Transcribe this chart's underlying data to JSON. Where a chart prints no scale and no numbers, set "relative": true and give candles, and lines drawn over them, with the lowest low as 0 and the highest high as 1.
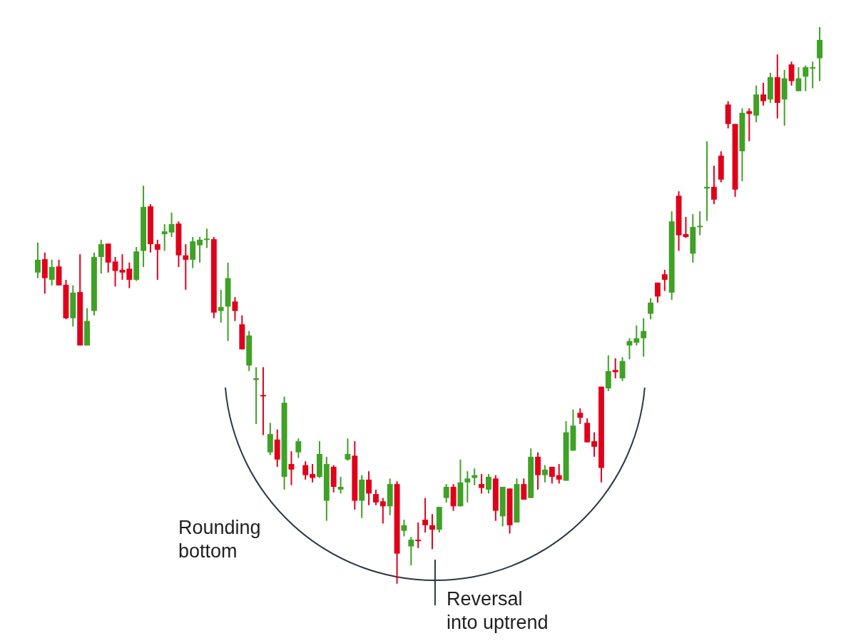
{
  "chart_data": {
    "type": "candlestick",
    "relative": true,
    "categories": [
      null,
      null,
      null,
      null,
      null,
      null,
      null,
      null,
      null,
      null,
      null,
      null,
      null,
      null,
      null,
      null,
      null,
      null,
      null,
      null,
      null,
      null,
      null,
      null,
      null,
      null,
      null,
      null,
      null,
      null,
      null,
      null,
      null,
      null,
      null,
      null,
      null,
      null,
      null,
      null,
      null,
      null,
      null,
      null,
      null,
      null,
      null,
      null,
      null,
      null,
      null,
      null,
      null,
      null,
      null,
      null,
      null,
      null,
      null,
      null,
      null,
      null,
      null,
      null,
      null,
      null,
      null,
      null,
      null,
      null,
      null,
      null,
      null,
      null,
      null,
      null,
      null,
      null,
      null,
      null,
      null,
      null,
      null,
      null,
      null,
      null,
      null,
      null,
      null,
      null,
      null,
      null,
      null,
      null,
      null,
      null,
      null,
      null,
      null,
      null,
      null,
      null,
      null,
      null,
      null,
      null,
      null,
      null,
      null,
      null,
      null,
      null
    ],
    "ohlc": [
      [
        0.559,
        0.613,
        0.549,
        0.582
      ],
      [
        0.583,
        0.595,
        0.521,
        0.549
      ],
      [
        0.546,
        0.582,
        0.536,
        0.569
      ],
      [
        0.57,
        0.582,
        0.536,
        0.536
      ],
      [
        0.537,
        0.546,
        0.475,
        0.477
      ],
      [
        0.477,
        0.536,
        0.462,
        0.523
      ],
      [
        0.524,
        0.592,
        0.428,
        0.428
      ],
      [
        0.428,
        0.495,
        0.428,
        0.472
      ],
      [
        0.49,
        0.595,
        0.482,
        0.587
      ],
      [
        0.587,
        0.618,
        0.557,
        0.61
      ],
      [
        0.611,
        0.611,
        0.559,
        0.577
      ],
      [
        0.579,
        0.587,
        0.534,
        0.562
      ],
      [
        0.564,
        0.592,
        0.546,
        0.559
      ],
      [
        0.566,
        0.577,
        0.531,
        0.546
      ],
      [
        0.546,
        0.605,
        0.544,
        0.597
      ],
      [
        0.598,
        0.715,
        0.569,
        0.677
      ],
      [
        0.678,
        0.682,
        0.595,
        0.61
      ],
      [
        0.61,
        0.618,
        0.546,
        0.6
      ],
      [
        0.628,
        0.646,
        0.598,
        0.633
      ],
      [
        0.631,
        0.667,
        0.623,
        0.646
      ],
      [
        0.647,
        0.651,
        0.569,
        0.59
      ],
      [
        0.59,
        0.61,
        0.528,
        0.582
      ],
      [
        0.582,
        0.623,
        0.567,
        0.615
      ],
      [
        0.608,
        0.623,
        0.577,
        0.618
      ],
      [
        0.618,
        0.638,
        0.603,
        0.62
      ],
      [
        0.619,
        0.623,
        0.477,
        0.487
      ],
      [
        0.49,
        0.528,
        0.469,
        0.497
      ],
      [
        0.498,
        0.577,
        0.436,
        0.549
      ],
      [
        0.507,
        0.515,
        0.472,
        0.49
      ],
      [
        0.466,
        0.482,
        0.421,
        0.421
      ],
      [
        0.392,
        0.454,
        0.382,
        0.446
      ],
      [
        0.366,
        0.389,
        0.287,
        0.369
      ],
      [
        0.339,
        0.389,
        0.267,
        0.337
      ],
      [
        0.236,
        0.289,
        0.231,
        0.269
      ],
      [
        0.259,
        0.277,
        0.21,
        0.223
      ],
      [
        0.192,
        0.336,
        0.169,
        0.325
      ],
      [
        0.215,
        0.238,
        0.177,
        0.205
      ],
      [
        0.236,
        0.261,
        0.226,
        0.256
      ],
      [
        0.213,
        0.22,
        0.187,
        0.195
      ],
      [
        0.197,
        0.215,
        0.182,
        0.19
      ],
      [
        0.192,
        0.256,
        0.19,
        0.233
      ],
      [
        0.149,
        0.228,
        0.113,
        0.215
      ],
      [
        0.21,
        0.213,
        0.164,
        0.174
      ],
      [
        0.169,
        0.192,
        0.162,
        0.174
      ],
      [
        0.223,
        0.261,
        0.221,
        0.233
      ],
      [
        0.23,
        0.256,
        0.133,
        0.149
      ],
      [
        0.149,
        0.195,
        0.118,
        0.187
      ],
      [
        0.187,
        0.202,
        0.141,
        0.162
      ],
      [
        0.161,
        0.169,
        0.141,
        0.146
      ],
      [
        0.148,
        0.154,
        0.108,
        0.139
      ],
      [
        0.139,
        0.189,
        0.123,
        0.179
      ],
      [
        0.179,
        0.184,
        0,
        0.054
      ],
      [
        0.095,
        0.115,
        0.085,
        0.105
      ],
      [
        0.067,
        0.084,
        0.033,
        0.079
      ],
      [
        0.079,
        0.11,
        0.064,
        0.077
      ],
      [
        0.115,
        0.154,
        0.092,
        0.105
      ],
      [
        0.105,
        0.125,
        0.062,
        0.097
      ],
      [
        0.097,
        0.138,
        0.092,
        0.138
      ],
      [
        0.154,
        0.179,
        0.146,
        0.174
      ],
      [
        0.174,
        0.179,
        0.131,
        0.139
      ],
      [
        0.139,
        0.223,
        0.139,
        0.182
      ],
      [
        0.182,
        0.202,
        0.146,
        0.189
      ],
      [
        0.19,
        0.207,
        0.177,
        0.195
      ],
      [
        0.179,
        0.197,
        0.162,
        0.172
      ],
      [
        0.169,
        0.197,
        0.162,
        0.192
      ],
      [
        0.189,
        0.195,
        0.113,
        0.131
      ],
      [
        0.121,
        0.174,
        0.103,
        0.174
      ],
      [
        0.171,
        0.171,
        0.09,
        0.105
      ],
      [
        0.11,
        0.189,
        0.11,
        0.179
      ],
      [
        0.179,
        0.189,
        0.151,
        0.151
      ],
      [
        0.154,
        0.243,
        0.154,
        0.228
      ],
      [
        0.228,
        0.236,
        0.169,
        0.195
      ],
      [
        0.195,
        0.213,
        0.182,
        0.205
      ],
      [
        0.21,
        0.21,
        0.18,
        0.192
      ],
      [
        0.195,
        0.215,
        0.18,
        0.187
      ],
      [
        0.185,
        0.292,
        0.185,
        0.272
      ],
      [
        0.239,
        0.313,
        0.239,
        0.284
      ],
      [
        0.307,
        0.315,
        0.287,
        0.298
      ],
      [
        0.289,
        0.297,
        0.254,
        0.254
      ],
      [
        0.256,
        0.272,
        0.228,
        0.246
      ],
      [
        0.354,
        0.354,
        0.182,
        0.208
      ],
      [
        0.351,
        0.41,
        0.346,
        0.382
      ],
      [
        0.384,
        0.405,
        0.369,
        0.38
      ],
      [
        0.369,
        0.407,
        0.364,
        0.4
      ],
      [
        0.428,
        0.441,
        0.403,
        0.436
      ],
      [
        0.433,
        0.464,
        0.428,
        0.441
      ],
      [
        0.441,
        0.477,
        0.408,
        0.454
      ],
      [
        0.485,
        0.513,
        0.475,
        0.505
      ],
      [
        0.541,
        0.541,
        0.505,
        0.516
      ],
      [
        0.556,
        0.564,
        0.526,
        0.546
      ],
      [
        0.523,
        0.669,
        0.51,
        0.651
      ],
      [
        0.697,
        0.705,
        0.598,
        0.626
      ],
      [
        0.628,
        0.659,
        0.621,
        0.623
      ],
      [
        0.593,
        0.664,
        0.577,
        0.641
      ],
      [
        0.641,
        0.669,
        0.626,
        0.643
      ],
      [
        0.71,
        0.795,
        0.652,
        0.713
      ],
      [
        0.713,
        0.751,
        0.682,
        0.69
      ],
      [
        0.769,
        0.777,
        0.721,
        0.726
      ],
      [
        0.861,
        0.867,
        0.818,
        0.826
      ],
      [
        0.826,
        0.826,
        0.695,
        0.708
      ],
      [
        0.777,
        0.854,
        0.723,
        0.846
      ],
      [
        0.849,
        0.854,
        0.795,
        0.844
      ],
      [
        0.841,
        0.895,
        0.829,
        0.879
      ],
      [
        0.879,
        0.9,
        0.859,
        0.867
      ],
      [
        0.87,
        0.918,
        0.864,
        0.91
      ],
      [
        0.91,
        0.951,
        0.836,
        0.864
      ],
      [
        0.87,
        0.923,
        0.823,
        0.908
      ],
      [
        0.933,
        0.938,
        0.895,
        0.903
      ],
      [
        0.885,
        0.928,
        0.885,
        0.908
      ],
      [
        0.911,
        0.931,
        0.885,
        0.928
      ],
      [
        0.926,
        0.938,
        0.89,
        0.928
      ],
      [
        0.944,
        1,
        0.903,
        0.977
      ]
    ],
    "annotations": [
      "Rounding bottom",
      "Reversal into uptrend"
    ]
  }
}
